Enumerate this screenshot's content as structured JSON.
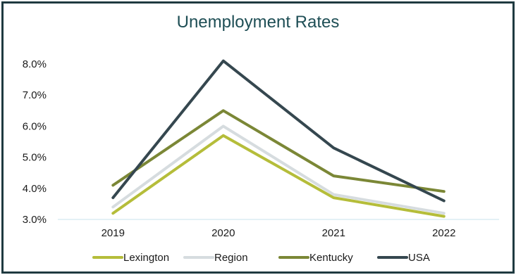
{
  "chart_data": {
    "type": "line",
    "title": "Unemployment Rates",
    "xlabel": "",
    "ylabel": "",
    "categories": [
      "2019",
      "2020",
      "2021",
      "2022"
    ],
    "ylim": [
      3.0,
      8.0
    ],
    "yticks": [
      "3.0%",
      "4.0%",
      "5.0%",
      "6.0%",
      "7.0%",
      "8.0%"
    ],
    "ytick_values": [
      3.0,
      4.0,
      5.0,
      6.0,
      7.0,
      8.0
    ],
    "grid": false,
    "legend_position": "bottom",
    "series": [
      {
        "name": "Lexington",
        "values": [
          3.2,
          5.7,
          3.7,
          3.1
        ],
        "color": "#b5bd3a"
      },
      {
        "name": "Region",
        "values": [
          3.4,
          6.0,
          3.8,
          3.2
        ],
        "color": "#d6dcdf"
      },
      {
        "name": "Kentucky",
        "values": [
          4.1,
          6.5,
          4.4,
          3.9
        ],
        "color": "#7b8736"
      },
      {
        "name": "USA",
        "values": [
          3.7,
          8.1,
          5.3,
          3.6
        ],
        "color": "#35474f"
      }
    ],
    "axis_color": "#c9e3ee",
    "border_color": "#1f3a40",
    "title_color": "#1e4e55"
  }
}
